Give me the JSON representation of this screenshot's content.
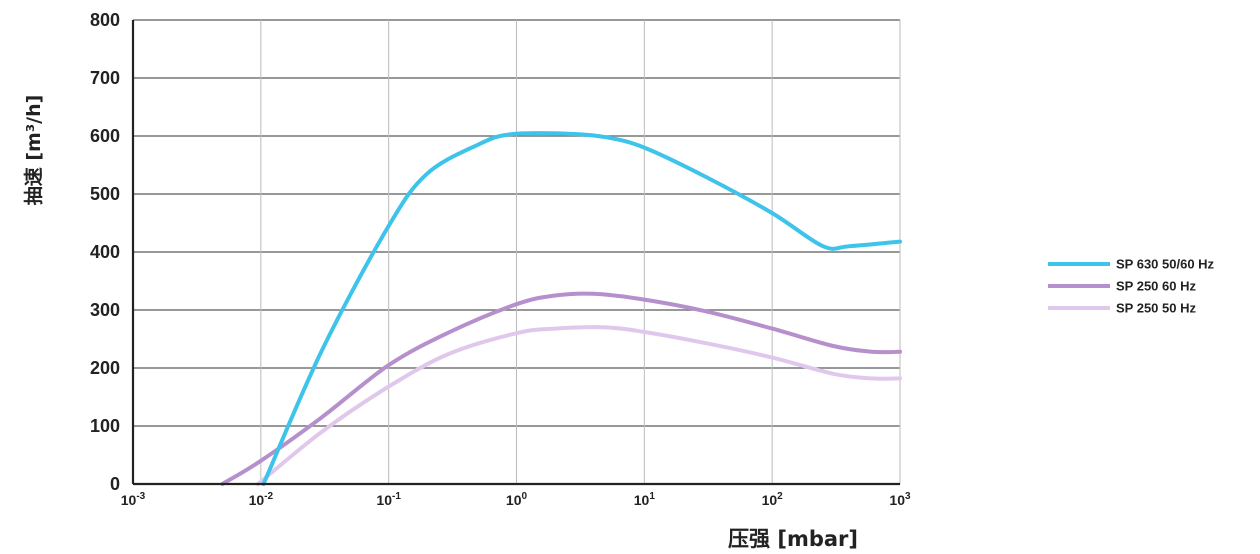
{
  "chart_data": {
    "type": "line",
    "title": "",
    "xlabel": "压强 [mbar]",
    "ylabel": "抽速 [m³/h]",
    "x_scale": "log",
    "xlim": [
      0.001,
      1000
    ],
    "ylim": [
      0,
      800
    ],
    "grid": true,
    "legend_position": "right",
    "y_ticks": [
      {
        "value": 0,
        "label": "0"
      },
      {
        "value": 100,
        "label": "100"
      },
      {
        "value": 200,
        "label": "200"
      },
      {
        "value": 300,
        "label": "300"
      },
      {
        "value": 400,
        "label": "400"
      },
      {
        "value": 500,
        "label": "500"
      },
      {
        "value": 600,
        "label": "600"
      },
      {
        "value": 700,
        "label": "700"
      },
      {
        "value": 800,
        "label": "800"
      }
    ],
    "x_ticks": [
      {
        "value": 0.001,
        "base": "10",
        "exp": "-3"
      },
      {
        "value": 0.01,
        "base": "10",
        "exp": "-2"
      },
      {
        "value": 0.1,
        "base": "10",
        "exp": "-1"
      },
      {
        "value": 1,
        "base": "10",
        "exp": "0"
      },
      {
        "value": 10,
        "base": "10",
        "exp": "1"
      },
      {
        "value": 100,
        "base": "10",
        "exp": "2"
      },
      {
        "value": 1000,
        "base": "10",
        "exp": "3"
      }
    ],
    "series": [
      {
        "name": "SP 630 50/60 Hz",
        "color": "#3ec3ea",
        "points": [
          [
            0.0105,
            0
          ],
          [
            0.03,
            230
          ],
          [
            0.1,
            445
          ],
          [
            0.2,
            535
          ],
          [
            0.5,
            585
          ],
          [
            0.9,
            603
          ],
          [
            2.5,
            604
          ],
          [
            5,
            598
          ],
          [
            10,
            580
          ],
          [
            30,
            530
          ],
          [
            100,
            467
          ],
          [
            250,
            410
          ],
          [
            400,
            410
          ],
          [
            1000,
            418
          ]
        ]
      },
      {
        "name": "SP 250 60 Hz",
        "color": "#b590cc",
        "points": [
          [
            0.005,
            0
          ],
          [
            0.01,
            40
          ],
          [
            0.03,
            115
          ],
          [
            0.1,
            205
          ],
          [
            0.3,
            262
          ],
          [
            1,
            310
          ],
          [
            2,
            325
          ],
          [
            4,
            328
          ],
          [
            10,
            318
          ],
          [
            30,
            298
          ],
          [
            100,
            268
          ],
          [
            300,
            238
          ],
          [
            600,
            228
          ],
          [
            1000,
            228
          ]
        ]
      },
      {
        "name": "SP 250 50 Hz",
        "color": "#e0c8ec",
        "points": [
          [
            0.0095,
            0
          ],
          [
            0.03,
            90
          ],
          [
            0.1,
            168
          ],
          [
            0.3,
            225
          ],
          [
            1,
            260
          ],
          [
            2,
            268
          ],
          [
            5,
            270
          ],
          [
            10,
            262
          ],
          [
            30,
            243
          ],
          [
            100,
            218
          ],
          [
            300,
            190
          ],
          [
            600,
            182
          ],
          [
            1000,
            182
          ]
        ]
      }
    ]
  }
}
